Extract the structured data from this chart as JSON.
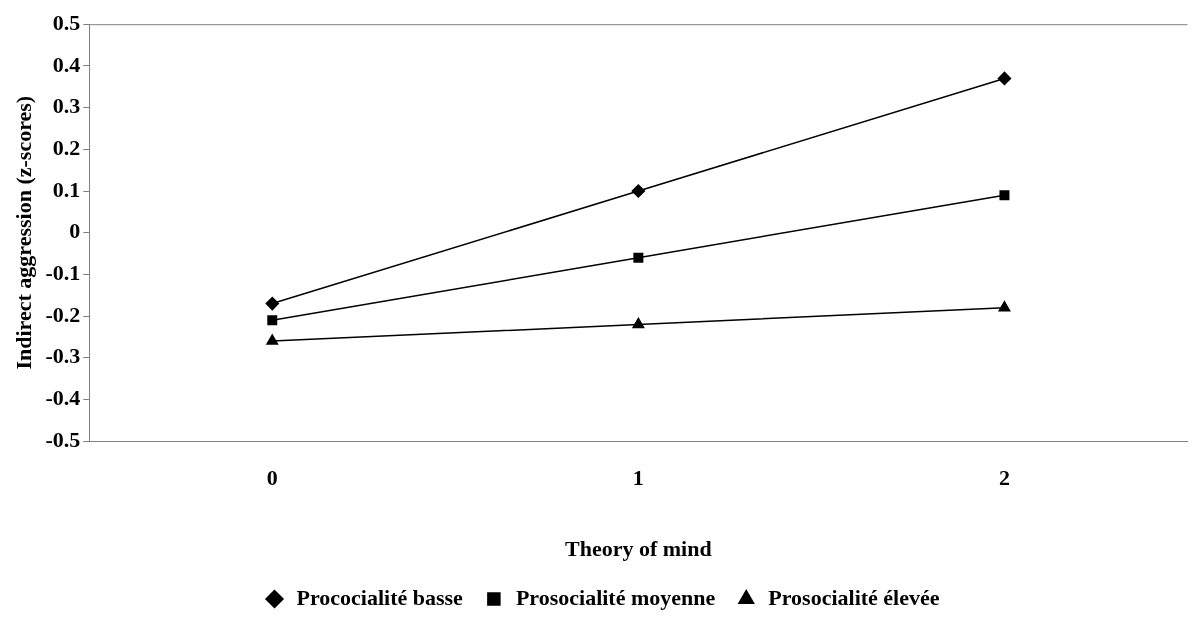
{
  "chart_data": {
    "type": "line",
    "xlabel": "Theory of mind",
    "ylabel": "Indirect aggression (z-scores)",
    "categories": [
      "0",
      "1",
      "2"
    ],
    "series": [
      {
        "name": "Prococialité basse",
        "color": "#000000",
        "marker": "diamond",
        "values": [
          -0.17,
          0.1,
          0.37
        ]
      },
      {
        "name": "Prosocialité moyenne",
        "color": "#000000",
        "marker": "square",
        "values": [
          -0.21,
          -0.06,
          0.09
        ]
      },
      {
        "name": "Prosocialité élevée",
        "color": "#000000",
        "marker": "triangle",
        "values": [
          -0.26,
          -0.22,
          -0.18
        ]
      }
    ],
    "ylim": [
      -0.5,
      0.5
    ],
    "yticks": [
      -0.5,
      -0.4,
      -0.3,
      -0.2,
      -0.1,
      0,
      0.1,
      0.2,
      0.3,
      0.4,
      0.5
    ],
    "grid": false,
    "legend": "bottom",
    "line_style": "solid"
  }
}
